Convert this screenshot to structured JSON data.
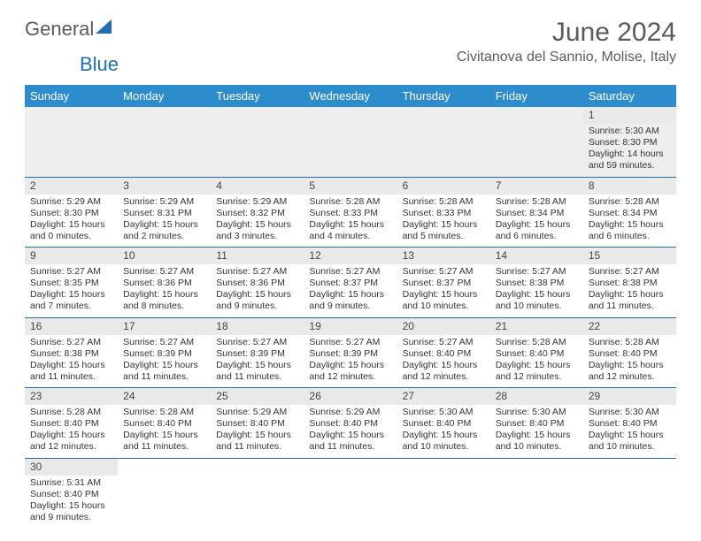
{
  "brand": {
    "part1": "General",
    "part2": "Blue"
  },
  "title": "June 2024",
  "location": "Civitanova del Sannio, Molise, Italy",
  "colors": {
    "header_bg": "#2d8ccc",
    "header_text": "#ffffff",
    "border": "#2d6aa0",
    "daynum_bg": "#e9e9e9",
    "text": "#333333",
    "title_text": "#5a5a5a",
    "logo_blue": "#1f6fb2"
  },
  "weekdays": [
    "Sunday",
    "Monday",
    "Tuesday",
    "Wednesday",
    "Thursday",
    "Friday",
    "Saturday"
  ],
  "weeks": [
    [
      null,
      null,
      null,
      null,
      null,
      null,
      {
        "n": "1",
        "sr": "Sunrise: 5:30 AM",
        "ss": "Sunset: 8:30 PM",
        "dl": "Daylight: 14 hours and 59 minutes."
      }
    ],
    [
      {
        "n": "2",
        "sr": "Sunrise: 5:29 AM",
        "ss": "Sunset: 8:30 PM",
        "dl": "Daylight: 15 hours and 0 minutes."
      },
      {
        "n": "3",
        "sr": "Sunrise: 5:29 AM",
        "ss": "Sunset: 8:31 PM",
        "dl": "Daylight: 15 hours and 2 minutes."
      },
      {
        "n": "4",
        "sr": "Sunrise: 5:29 AM",
        "ss": "Sunset: 8:32 PM",
        "dl": "Daylight: 15 hours and 3 minutes."
      },
      {
        "n": "5",
        "sr": "Sunrise: 5:28 AM",
        "ss": "Sunset: 8:33 PM",
        "dl": "Daylight: 15 hours and 4 minutes."
      },
      {
        "n": "6",
        "sr": "Sunrise: 5:28 AM",
        "ss": "Sunset: 8:33 PM",
        "dl": "Daylight: 15 hours and 5 minutes."
      },
      {
        "n": "7",
        "sr": "Sunrise: 5:28 AM",
        "ss": "Sunset: 8:34 PM",
        "dl": "Daylight: 15 hours and 6 minutes."
      },
      {
        "n": "8",
        "sr": "Sunrise: 5:28 AM",
        "ss": "Sunset: 8:34 PM",
        "dl": "Daylight: 15 hours and 6 minutes."
      }
    ],
    [
      {
        "n": "9",
        "sr": "Sunrise: 5:27 AM",
        "ss": "Sunset: 8:35 PM",
        "dl": "Daylight: 15 hours and 7 minutes."
      },
      {
        "n": "10",
        "sr": "Sunrise: 5:27 AM",
        "ss": "Sunset: 8:36 PM",
        "dl": "Daylight: 15 hours and 8 minutes."
      },
      {
        "n": "11",
        "sr": "Sunrise: 5:27 AM",
        "ss": "Sunset: 8:36 PM",
        "dl": "Daylight: 15 hours and 9 minutes."
      },
      {
        "n": "12",
        "sr": "Sunrise: 5:27 AM",
        "ss": "Sunset: 8:37 PM",
        "dl": "Daylight: 15 hours and 9 minutes."
      },
      {
        "n": "13",
        "sr": "Sunrise: 5:27 AM",
        "ss": "Sunset: 8:37 PM",
        "dl": "Daylight: 15 hours and 10 minutes."
      },
      {
        "n": "14",
        "sr": "Sunrise: 5:27 AM",
        "ss": "Sunset: 8:38 PM",
        "dl": "Daylight: 15 hours and 10 minutes."
      },
      {
        "n": "15",
        "sr": "Sunrise: 5:27 AM",
        "ss": "Sunset: 8:38 PM",
        "dl": "Daylight: 15 hours and 11 minutes."
      }
    ],
    [
      {
        "n": "16",
        "sr": "Sunrise: 5:27 AM",
        "ss": "Sunset: 8:38 PM",
        "dl": "Daylight: 15 hours and 11 minutes."
      },
      {
        "n": "17",
        "sr": "Sunrise: 5:27 AM",
        "ss": "Sunset: 8:39 PM",
        "dl": "Daylight: 15 hours and 11 minutes."
      },
      {
        "n": "18",
        "sr": "Sunrise: 5:27 AM",
        "ss": "Sunset: 8:39 PM",
        "dl": "Daylight: 15 hours and 11 minutes."
      },
      {
        "n": "19",
        "sr": "Sunrise: 5:27 AM",
        "ss": "Sunset: 8:39 PM",
        "dl": "Daylight: 15 hours and 12 minutes."
      },
      {
        "n": "20",
        "sr": "Sunrise: 5:27 AM",
        "ss": "Sunset: 8:40 PM",
        "dl": "Daylight: 15 hours and 12 minutes."
      },
      {
        "n": "21",
        "sr": "Sunrise: 5:28 AM",
        "ss": "Sunset: 8:40 PM",
        "dl": "Daylight: 15 hours and 12 minutes."
      },
      {
        "n": "22",
        "sr": "Sunrise: 5:28 AM",
        "ss": "Sunset: 8:40 PM",
        "dl": "Daylight: 15 hours and 12 minutes."
      }
    ],
    [
      {
        "n": "23",
        "sr": "Sunrise: 5:28 AM",
        "ss": "Sunset: 8:40 PM",
        "dl": "Daylight: 15 hours and 12 minutes."
      },
      {
        "n": "24",
        "sr": "Sunrise: 5:28 AM",
        "ss": "Sunset: 8:40 PM",
        "dl": "Daylight: 15 hours and 11 minutes."
      },
      {
        "n": "25",
        "sr": "Sunrise: 5:29 AM",
        "ss": "Sunset: 8:40 PM",
        "dl": "Daylight: 15 hours and 11 minutes."
      },
      {
        "n": "26",
        "sr": "Sunrise: 5:29 AM",
        "ss": "Sunset: 8:40 PM",
        "dl": "Daylight: 15 hours and 11 minutes."
      },
      {
        "n": "27",
        "sr": "Sunrise: 5:30 AM",
        "ss": "Sunset: 8:40 PM",
        "dl": "Daylight: 15 hours and 10 minutes."
      },
      {
        "n": "28",
        "sr": "Sunrise: 5:30 AM",
        "ss": "Sunset: 8:40 PM",
        "dl": "Daylight: 15 hours and 10 minutes."
      },
      {
        "n": "29",
        "sr": "Sunrise: 5:30 AM",
        "ss": "Sunset: 8:40 PM",
        "dl": "Daylight: 15 hours and 10 minutes."
      }
    ],
    [
      {
        "n": "30",
        "sr": "Sunrise: 5:31 AM",
        "ss": "Sunset: 8:40 PM",
        "dl": "Daylight: 15 hours and 9 minutes."
      },
      null,
      null,
      null,
      null,
      null,
      null
    ]
  ]
}
